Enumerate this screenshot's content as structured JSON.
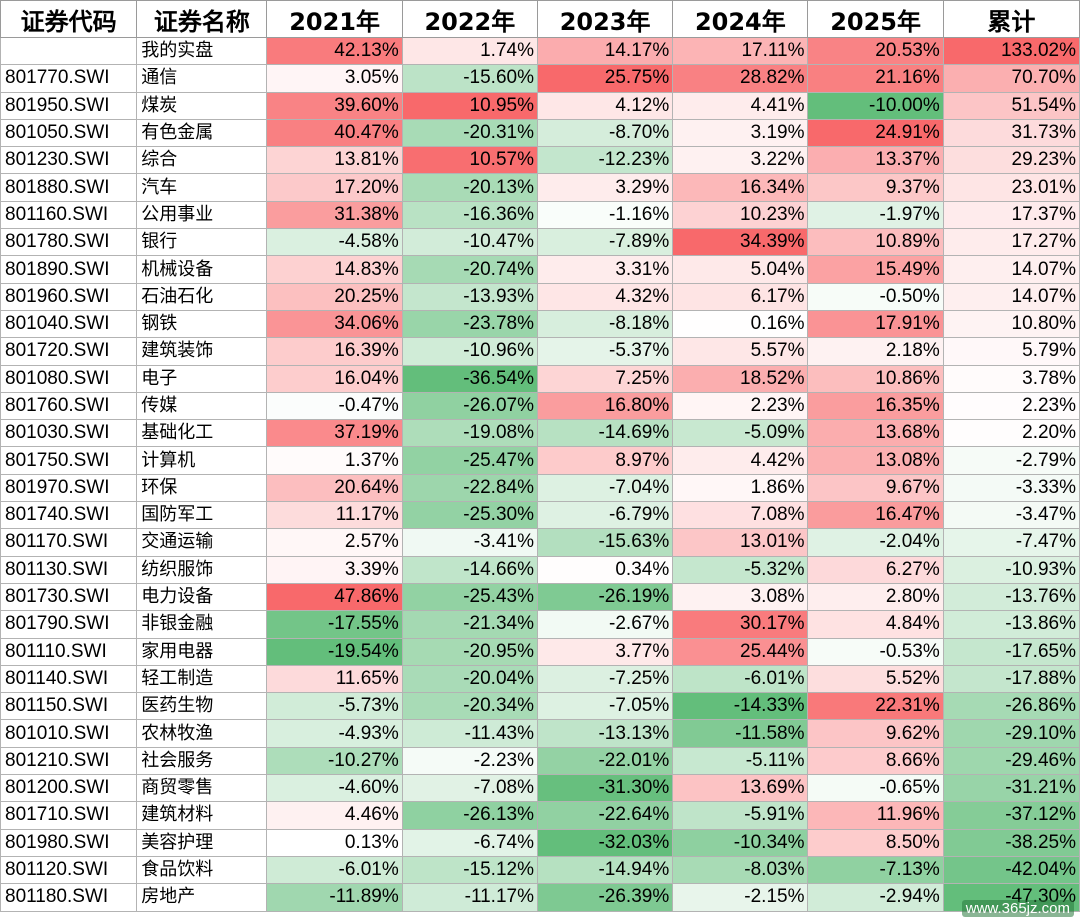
{
  "headers": [
    "证券代码",
    "证券名称",
    "2021年",
    "2022年",
    "2023年",
    "2024年",
    "2025年",
    "累计"
  ],
  "rows": [
    {
      "code": "",
      "name": "我的实盘",
      "values": [
        "42.13%",
        "1.74%",
        "14.17%",
        "17.11%",
        "20.53%",
        "133.02%"
      ]
    },
    {
      "code": "801770.SWI",
      "name": "通信",
      "values": [
        "3.05%",
        "-15.60%",
        "25.75%",
        "28.82%",
        "21.16%",
        "70.70%"
      ]
    },
    {
      "code": "801950.SWI",
      "name": "煤炭",
      "values": [
        "39.60%",
        "10.95%",
        "4.12%",
        "4.41%",
        "-10.00%",
        "51.54%"
      ]
    },
    {
      "code": "801050.SWI",
      "name": "有色金属",
      "values": [
        "40.47%",
        "-20.31%",
        "-8.70%",
        "3.19%",
        "24.91%",
        "31.73%"
      ]
    },
    {
      "code": "801230.SWI",
      "name": "综合",
      "values": [
        "13.81%",
        "10.57%",
        "-12.23%",
        "3.22%",
        "13.37%",
        "29.23%"
      ]
    },
    {
      "code": "801880.SWI",
      "name": "汽车",
      "values": [
        "17.20%",
        "-20.13%",
        "3.29%",
        "16.34%",
        "9.37%",
        "23.01%"
      ]
    },
    {
      "code": "801160.SWI",
      "name": "公用事业",
      "values": [
        "31.38%",
        "-16.36%",
        "-1.16%",
        "10.23%",
        "-1.97%",
        "17.37%"
      ]
    },
    {
      "code": "801780.SWI",
      "name": "银行",
      "values": [
        "-4.58%",
        "-10.47%",
        "-7.89%",
        "34.39%",
        "10.89%",
        "17.27%"
      ]
    },
    {
      "code": "801890.SWI",
      "name": "机械设备",
      "values": [
        "14.83%",
        "-20.74%",
        "3.31%",
        "5.04%",
        "15.49%",
        "14.07%"
      ]
    },
    {
      "code": "801960.SWI",
      "name": "石油石化",
      "values": [
        "20.25%",
        "-13.93%",
        "4.32%",
        "6.17%",
        "-0.50%",
        "14.07%"
      ]
    },
    {
      "code": "801040.SWI",
      "name": "钢铁",
      "values": [
        "34.06%",
        "-23.78%",
        "-8.18%",
        "0.16%",
        "17.91%",
        "10.80%"
      ]
    },
    {
      "code": "801720.SWI",
      "name": "建筑装饰",
      "values": [
        "16.39%",
        "-10.96%",
        "-5.37%",
        "5.57%",
        "2.18%",
        "5.79%"
      ]
    },
    {
      "code": "801080.SWI",
      "name": "电子",
      "values": [
        "16.04%",
        "-36.54%",
        "7.25%",
        "18.52%",
        "10.86%",
        "3.78%"
      ]
    },
    {
      "code": "801760.SWI",
      "name": "传媒",
      "values": [
        "-0.47%",
        "-26.07%",
        "16.80%",
        "2.23%",
        "16.35%",
        "2.23%"
      ]
    },
    {
      "code": "801030.SWI",
      "name": "基础化工",
      "values": [
        "37.19%",
        "-19.08%",
        "-14.69%",
        "-5.09%",
        "13.68%",
        "2.20%"
      ]
    },
    {
      "code": "801750.SWI",
      "name": "计算机",
      "values": [
        "1.37%",
        "-25.47%",
        "8.97%",
        "4.42%",
        "13.08%",
        "-2.79%"
      ]
    },
    {
      "code": "801970.SWI",
      "name": "环保",
      "values": [
        "20.64%",
        "-22.84%",
        "-7.04%",
        "1.86%",
        "9.67%",
        "-3.33%"
      ]
    },
    {
      "code": "801740.SWI",
      "name": "国防军工",
      "values": [
        "11.17%",
        "-25.30%",
        "-6.79%",
        "7.08%",
        "16.47%",
        "-3.47%"
      ]
    },
    {
      "code": "801170.SWI",
      "name": "交通运输",
      "values": [
        "2.57%",
        "-3.41%",
        "-15.63%",
        "13.01%",
        "-2.04%",
        "-7.47%"
      ]
    },
    {
      "code": "801130.SWI",
      "name": "纺织服饰",
      "values": [
        "3.39%",
        "-14.66%",
        "0.34%",
        "-5.32%",
        "6.27%",
        "-10.93%"
      ]
    },
    {
      "code": "801730.SWI",
      "name": "电力设备",
      "values": [
        "47.86%",
        "-25.43%",
        "-26.19%",
        "3.08%",
        "2.80%",
        "-13.76%"
      ]
    },
    {
      "code": "801790.SWI",
      "name": "非银金融",
      "values": [
        "-17.55%",
        "-21.34%",
        "-2.67%",
        "30.17%",
        "4.84%",
        "-13.86%"
      ]
    },
    {
      "code": "801110.SWI",
      "name": "家用电器",
      "values": [
        "-19.54%",
        "-20.95%",
        "3.77%",
        "25.44%",
        "-0.53%",
        "-17.65%"
      ]
    },
    {
      "code": "801140.SWI",
      "name": "轻工制造",
      "values": [
        "11.65%",
        "-20.04%",
        "-7.25%",
        "-6.01%",
        "5.52%",
        "-17.88%"
      ]
    },
    {
      "code": "801150.SWI",
      "name": "医药生物",
      "values": [
        "-5.73%",
        "-20.34%",
        "-7.05%",
        "-14.33%",
        "22.31%",
        "-26.86%"
      ]
    },
    {
      "code": "801010.SWI",
      "name": "农林牧渔",
      "values": [
        "-4.93%",
        "-11.43%",
        "-13.13%",
        "-11.58%",
        "9.62%",
        "-29.10%"
      ]
    },
    {
      "code": "801210.SWI",
      "name": "社会服务",
      "values": [
        "-10.27%",
        "-2.23%",
        "-22.01%",
        "-5.11%",
        "8.66%",
        "-29.46%"
      ]
    },
    {
      "code": "801200.SWI",
      "name": "商贸零售",
      "values": [
        "-4.60%",
        "-7.08%",
        "-31.30%",
        "13.69%",
        "-0.65%",
        "-31.21%"
      ]
    },
    {
      "code": "801710.SWI",
      "name": "建筑材料",
      "values": [
        "4.46%",
        "-26.13%",
        "-22.64%",
        "-5.91%",
        "11.96%",
        "-37.12%"
      ]
    },
    {
      "code": "801980.SWI",
      "name": "美容护理",
      "values": [
        "0.13%",
        "-6.74%",
        "-32.03%",
        "-10.34%",
        "8.50%",
        "-38.25%"
      ]
    },
    {
      "code": "801120.SWI",
      "name": "食品饮料",
      "values": [
        "-6.01%",
        "-15.12%",
        "-14.94%",
        "-8.03%",
        "-7.13%",
        "-42.04%"
      ]
    },
    {
      "code": "801180.SWI",
      "name": "房地产",
      "values": [
        "-11.89%",
        "-11.17%",
        "-26.39%",
        "-2.15%",
        "-2.94%",
        "-47.30%"
      ]
    }
  ],
  "color_scale": {
    "positive": "#f8696b",
    "negative": "#63be7b",
    "neutral": "#ffffff"
  },
  "watermark": "www.365jz.com"
}
